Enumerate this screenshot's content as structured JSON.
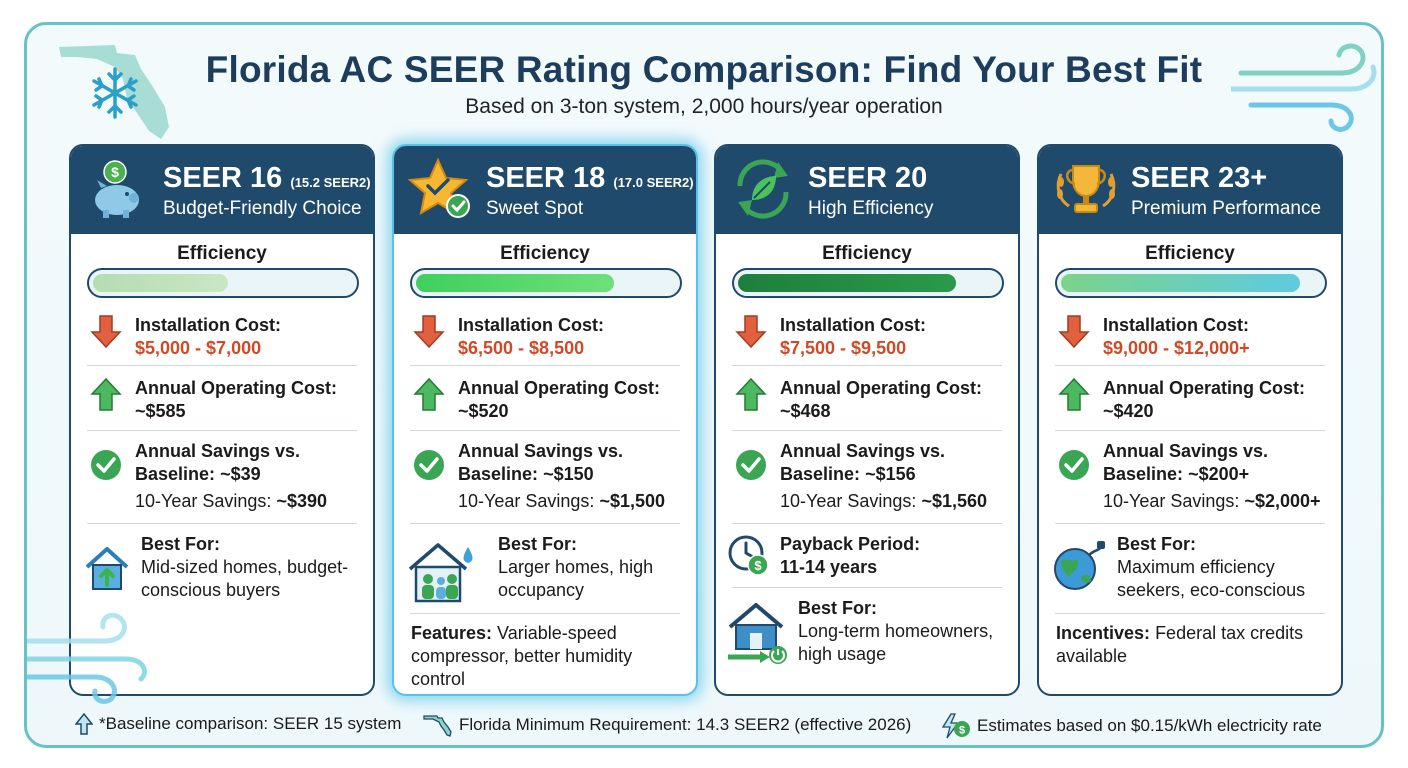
{
  "header": {
    "title": "Florida AC SEER Rating Comparison: Find Your Best Fit",
    "subtitle": "Based on 3-ton system, 2,000 hours/year operation"
  },
  "efficiency_label": "Efficiency",
  "cards": [
    {
      "name": "SEER 16",
      "seer2": "(15.2 SEER2)",
      "tagline": "Budget-Friendly Choice",
      "icon": "piggy-bank-icon",
      "efficiency_level": 0.52,
      "install_label": "Installation Cost:",
      "install_value": "$5,000 - $7,000",
      "operating_label": "Annual Operating Cost:",
      "operating_value": "~$585",
      "savings_line1": "Annual Savings vs.",
      "savings_line2_label": "Baseline:",
      "savings_line2_value": "~$39",
      "ten_year_label": "10-Year Savings:",
      "ten_year_value": "~$390",
      "best_for_label": "Best For:",
      "best_for_text": "Mid-sized homes, budget-conscious buyers"
    },
    {
      "name": "SEER 18",
      "seer2": "(17.0 SEER2)",
      "tagline": "Sweet Spot",
      "icon": "star-check-icon",
      "efficiency_level": 0.76,
      "install_label": "Installation Cost:",
      "install_value": "$6,500 - $8,500",
      "operating_label": "Annual Operating Cost:",
      "operating_value": "~$520",
      "savings_line1": "Annual Savings vs.",
      "savings_line2_label": "Baseline:",
      "savings_line2_value": "~$150",
      "ten_year_label": "10-Year Savings:",
      "ten_year_value": "~$1,500",
      "best_for_label": "Best For:",
      "best_for_text": "Larger homes, high occupancy",
      "features_label": "Features:",
      "features_text": "Variable-speed compressor, better humidity control"
    },
    {
      "name": "SEER 20",
      "seer2": "",
      "tagline": "High Efficiency",
      "icon": "leaf-recycle-icon",
      "efficiency_level": 0.84,
      "install_label": "Installation Cost:",
      "install_value": "$7,500 - $9,500",
      "operating_label": "Annual Operating Cost:",
      "operating_value": "~$468",
      "savings_line1": "Annual Savings vs.",
      "savings_line2_label": "Baseline:",
      "savings_line2_value": "~$156",
      "ten_year_label": "10-Year Savings:",
      "ten_year_value": "~$1,560",
      "payback_label": "Payback Period:",
      "payback_value": "11-14 years",
      "best_for_label": "Best For:",
      "best_for_text": "Long-term homeowners, high usage"
    },
    {
      "name": "SEER 23+",
      "seer2": "",
      "tagline": "Premium Performance",
      "icon": "trophy-icon",
      "efficiency_level": 0.92,
      "install_label": "Installation Cost:",
      "install_value": "$9,000 - $12,000+",
      "operating_label": "Annual Operating Cost:",
      "operating_value": "~$420",
      "savings_line1": "Annual Savings vs.",
      "savings_line2_label": "Baseline:",
      "savings_line2_value": "~$200+",
      "ten_year_label": "10-Year Savings:",
      "ten_year_value": "~$2,000+",
      "best_for_label": "Best For:",
      "best_for_text": "Maximum efficiency seekers, eco-conscious",
      "incentives_label": "Incentives:",
      "incentives_text": "Federal tax credits available"
    }
  ],
  "footer": {
    "baseline_note": "*Baseline comparison: SEER 15 system",
    "minimum_note": "Florida Minimum Requirement: 14.3 SEER2 (effective 2026)",
    "estimate_note": "Estimates based on $0.15/kWh electricity rate"
  },
  "colors": {
    "header_navy": "#1f4a6b",
    "title_navy": "#1d3d5c",
    "cost_red": "#cf4a26",
    "up_arrow_green": "#2e9d49",
    "check_green": "#2e9d49",
    "frame_teal": "#66c2c6",
    "featured_glow": "#57c3ea"
  }
}
